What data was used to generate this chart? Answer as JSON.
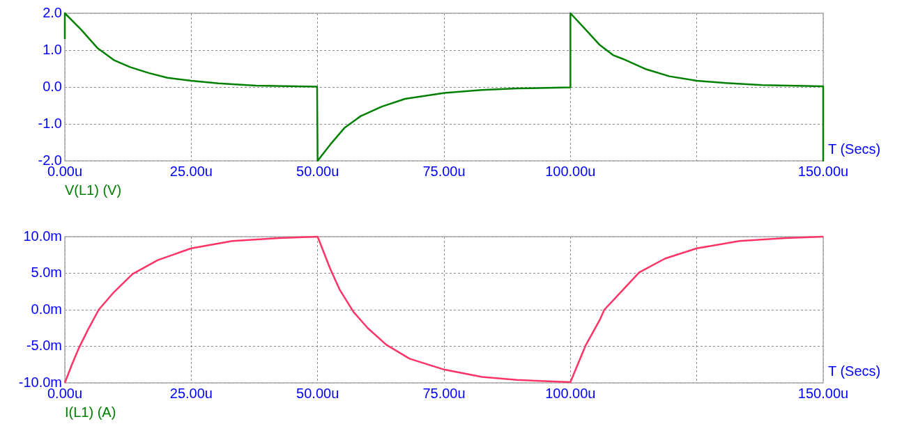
{
  "chart_data": [
    {
      "type": "line",
      "xlabel": "T (Secs)",
      "annotations": [
        "V(L1) (V)"
      ],
      "grid": true,
      "marker": "none",
      "line_style": "solid",
      "x": [
        0,
        0,
        3.2,
        6.5,
        9.7,
        12.9,
        16.6,
        20.3,
        25,
        30.4,
        37.8,
        49.9,
        50,
        52.5,
        55.3,
        58.5,
        62.7,
        67.3,
        75.1,
        82.5,
        89.4,
        100,
        100,
        103,
        105.8,
        108.5,
        110.4,
        115,
        119.6,
        125,
        130.7,
        138,
        150,
        150
      ],
      "series": [
        {
          "color": "#008000",
          "values": [
            1.3,
            2.0,
            1.56,
            1.05,
            0.73,
            0.54,
            0.38,
            0.25,
            0.17,
            0.1,
            0.04,
            0.01,
            -2.0,
            -1.56,
            -1.11,
            -0.79,
            -0.53,
            -0.32,
            -0.16,
            -0.08,
            -0.04,
            -0.01,
            2.0,
            1.56,
            1.14,
            0.86,
            0.76,
            0.48,
            0.29,
            0.17,
            0.11,
            0.05,
            0.02,
            -2.0
          ]
        }
      ],
      "xlim": [
        0,
        150
      ],
      "xticks": [
        {
          "value": 0,
          "label": "0.00u"
        },
        {
          "value": 25,
          "label": "25.00u"
        },
        {
          "value": 50,
          "label": "50.00u"
        },
        {
          "value": 75,
          "label": "75.00u"
        },
        {
          "value": 100,
          "label": "100.00u"
        },
        {
          "value": 125,
          "label": null
        },
        {
          "value": 150,
          "label": "150.00u"
        }
      ],
      "ylim": [
        -2,
        2
      ],
      "yticks": [
        {
          "value": -2,
          "label": "-2.0"
        },
        {
          "value": -1,
          "label": "-1.0"
        },
        {
          "value": 0,
          "label": "0.0"
        },
        {
          "value": 1,
          "label": "1.0"
        },
        {
          "value": 2,
          "label": "2.0"
        }
      ]
    },
    {
      "type": "line",
      "xlabel": "T (Secs)",
      "annotations": [
        "I(L1) (A)"
      ],
      "grid": true,
      "marker": "none",
      "line_style": "solid",
      "x": [
        0,
        1.4,
        2.8,
        4.6,
        6.7,
        9.7,
        13.4,
        18.4,
        25,
        33.1,
        42.4,
        50,
        52.5,
        54.4,
        57.1,
        59.9,
        63.6,
        68.2,
        75.1,
        82.5,
        89.4,
        100,
        103,
        105.8,
        106.7,
        108.6,
        113.6,
        118.7,
        125,
        133.4,
        142.6,
        150
      ],
      "series": [
        {
          "color": "#ff3366",
          "values": [
            -10,
            -7.5,
            -5.2,
            -2.7,
            0,
            2.4,
            4.9,
            6.8,
            8.4,
            9.4,
            9.8,
            10,
            5.6,
            2.7,
            -0.3,
            -2.5,
            -4.8,
            -6.7,
            -8.2,
            -9.2,
            -9.6,
            -9.9,
            -4.9,
            -1.4,
            0,
            1.4,
            5.1,
            7,
            8.4,
            9.4,
            9.8,
            10
          ]
        }
      ],
      "xlim": [
        0,
        150
      ],
      "xticks": [
        {
          "value": 0,
          "label": "0.00u"
        },
        {
          "value": 25,
          "label": "25.00u"
        },
        {
          "value": 50,
          "label": "50.00u"
        },
        {
          "value": 75,
          "label": "75.00u"
        },
        {
          "value": 100,
          "label": "100.00u"
        },
        {
          "value": 125,
          "label": null
        },
        {
          "value": 150,
          "label": "150.00u"
        }
      ],
      "ylim": [
        -10,
        10
      ],
      "yticks": [
        {
          "value": -10,
          "label": "-10.0m"
        },
        {
          "value": -5,
          "label": "-5.0m"
        },
        {
          "value": 0,
          "label": "0.0m"
        },
        {
          "value": 5,
          "label": "5.0m"
        },
        {
          "value": 10,
          "label": "10.0m"
        }
      ]
    }
  ]
}
